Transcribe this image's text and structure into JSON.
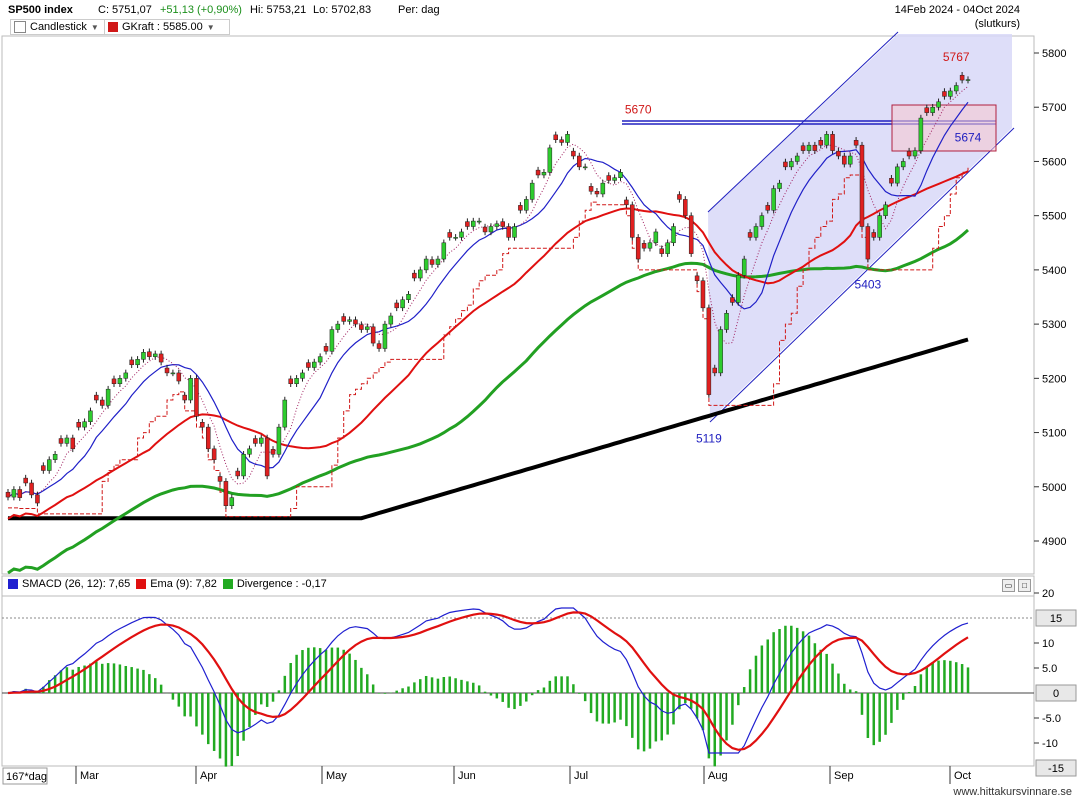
{
  "header": {
    "symbol": "SP500 index",
    "close": "C: 5751,07",
    "change": "+51,13 (+0,90%)",
    "high": "Hi: 5753,21",
    "low": "Lo: 5702,83",
    "period": "Per: dag",
    "date_range": "14Feb 2024 - 04Oct 2024",
    "price_mode": "(slutkurs)"
  },
  "legend": {
    "candlestick_label": "Candlestick",
    "gkraft_label": "GKraft : 5585.00"
  },
  "indicator_legend": {
    "smacd": "SMACD (26, 12): 7,65",
    "ema": "Ema (9): 7,82",
    "divergence": "Divergence : -0,17"
  },
  "bottom_axis": {
    "corner_label": "167*dag",
    "months": [
      "Mar",
      "Apr",
      "May",
      "Jun",
      "Jul",
      "Aug",
      "Sep",
      "Oct"
    ]
  },
  "footer": {
    "site": "www.hittakursvinnare.se"
  },
  "colors": {
    "up_candle": "#2ecc2e",
    "down_candle": "#e02020",
    "channel_fill": "#d8d8f8",
    "ma_fast": "#2020c8",
    "ma_mid": "#e01010",
    "ma_slow": "#22a022",
    "ma_long": "#000000",
    "macd": "#2020d0",
    "ema": "#e01010",
    "divergence": "#22aa22"
  },
  "chart_data": [
    {
      "type": "candlestick",
      "title": "SP500 index",
      "ylim": [
        4840,
        5830
      ],
      "y_ticks": [
        4900,
        5000,
        5100,
        5200,
        5300,
        5400,
        5500,
        5600,
        5700,
        5800
      ],
      "annotations": [
        {
          "label": "5670",
          "value": 5670,
          "date_index": 107
        },
        {
          "label": "5119",
          "value": 5119,
          "date_index": 119
        },
        {
          "label": "5674",
          "value": 5674,
          "date_index": 163
        },
        {
          "label": "5403",
          "value": 5403,
          "date_index": 146
        },
        {
          "label": "5767",
          "value": 5767,
          "date_index": 161
        }
      ],
      "closes": [
        4981,
        4995,
        4980,
        5007,
        4985,
        4970,
        5030,
        5050,
        5060,
        5080,
        5090,
        5070,
        5110,
        5120,
        5140,
        5160,
        5150,
        5180,
        5190,
        5200,
        5210,
        5225,
        5235,
        5248,
        5240,
        5245,
        5230,
        5210,
        5210,
        5195,
        5160,
        5200,
        5130,
        5110,
        5070,
        5050,
        5010,
        4965,
        4980,
        5020,
        5060,
        5070,
        5080,
        5090,
        5020,
        5060,
        5110,
        5160,
        5190,
        5200,
        5210,
        5220,
        5230,
        5240,
        5250,
        5290,
        5300,
        5305,
        5308,
        5300,
        5290,
        5295,
        5265,
        5255,
        5300,
        5315,
        5330,
        5345,
        5355,
        5385,
        5400,
        5420,
        5410,
        5420,
        5450,
        5460,
        5460,
        5470,
        5480,
        5490,
        5490,
        5470,
        5480,
        5485,
        5480,
        5460,
        5480,
        5510,
        5530,
        5560,
        5575,
        5580,
        5625,
        5640,
        5635,
        5650,
        5610,
        5590,
        5590,
        5545,
        5540,
        5560,
        5565,
        5570,
        5580,
        5520,
        5460,
        5420,
        5440,
        5450,
        5470,
        5430,
        5450,
        5480,
        5530,
        5500,
        5430,
        5380,
        5330,
        5170,
        5210,
        5290,
        5320,
        5340,
        5390,
        5420,
        5460,
        5480,
        5500,
        5510,
        5550,
        5560,
        5590,
        5600,
        5610,
        5620,
        5630,
        5620,
        5630,
        5650,
        5620,
        5610,
        5595,
        5610,
        5630,
        5480,
        5420,
        5460,
        5500,
        5520,
        5560,
        5590,
        5600,
        5610,
        5620,
        5680,
        5690,
        5700,
        5710,
        5720,
        5730,
        5740,
        5750,
        5751
      ],
      "volatility": 15
    },
    {
      "type": "line",
      "title": "SMACD",
      "series": [
        {
          "name": "SMACD (26, 12): 7,65"
        },
        {
          "name": "Ema (9): 7,82"
        },
        {
          "name": "Divergence : -0,17"
        }
      ],
      "ylim": [
        -15,
        20
      ],
      "y_ticks": [
        20,
        15,
        10,
        5,
        0,
        -5,
        -10,
        -15
      ],
      "y_tick_labels": [
        "20",
        "15",
        "10",
        "5.0",
        "0",
        "-5.0",
        "-10",
        "-15"
      ],
      "highlighted_ticks": [
        "15",
        "0",
        "-15"
      ]
    }
  ]
}
